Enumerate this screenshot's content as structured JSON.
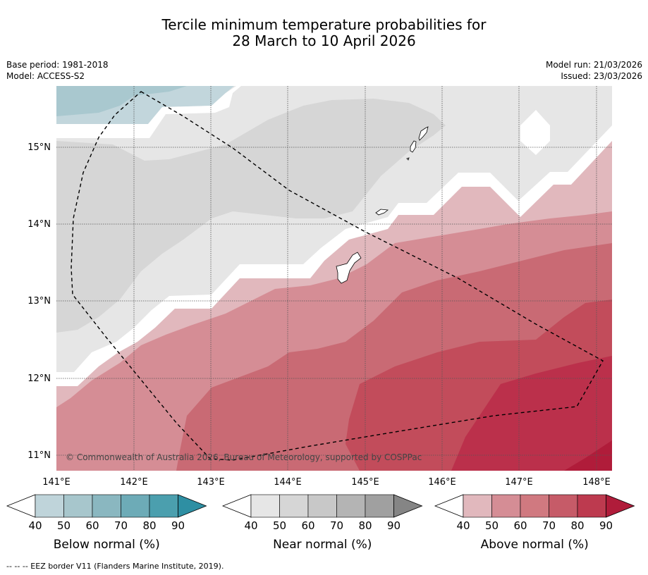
{
  "title": {
    "line1": "Tercile minimum temperature probabilities for",
    "line2": "28 March to 10 April 2026"
  },
  "meta": {
    "base_period": "Base period: 1981-2018",
    "model": "Model: ACCESS-S2",
    "model_run": "Model run: 21/03/2026",
    "issued": "Issued: 23/03/2026"
  },
  "map": {
    "lon_labels": [
      "141°E",
      "142°E",
      "143°E",
      "144°E",
      "145°E",
      "146°E",
      "147°E",
      "148°E"
    ],
    "lat_labels": [
      "15°N",
      "14°N",
      "13°N",
      "12°N",
      "11°N"
    ],
    "copyright": "© Commonwealth of Australia 2026, Bureau of Meteorology, supported by COSPPac"
  },
  "colorbars": [
    {
      "label": "Below normal (%)",
      "ticks": [
        "40",
        "50",
        "60",
        "70",
        "80",
        "90"
      ],
      "colors": [
        "#bfd4da",
        "#a7c6cc",
        "#8ab7c0",
        "#6dabb7",
        "#4b9fae",
        "#2e8fa3"
      ]
    },
    {
      "label": "Near normal (%)",
      "ticks": [
        "40",
        "50",
        "60",
        "70",
        "80",
        "90"
      ],
      "colors": [
        "#e6e6e6",
        "#d6d6d6",
        "#c8c8c8",
        "#b4b4b4",
        "#a0a0a0",
        "#858585"
      ]
    },
    {
      "label": "Above normal (%)",
      "ticks": [
        "40",
        "50",
        "60",
        "70",
        "80",
        "90"
      ],
      "colors": [
        "#e1b8bd",
        "#d58d95",
        "#d07980",
        "#c65b68",
        "#bd3a4f",
        "#b01c3a"
      ]
    }
  ],
  "footer": "--  --  -- EEZ border V11 (Flanders Marine Institute, 2019).",
  "colors": {
    "near40": "#e6e6e6",
    "near50": "#d6d6d6",
    "above40": "#e1b8bd",
    "above50": "#d58d95",
    "above60": "#c96a74",
    "above70": "#c24c5b",
    "above80": "#bb304b",
    "below40": "#c2d6dc",
    "below50": "#a9c8cf"
  }
}
